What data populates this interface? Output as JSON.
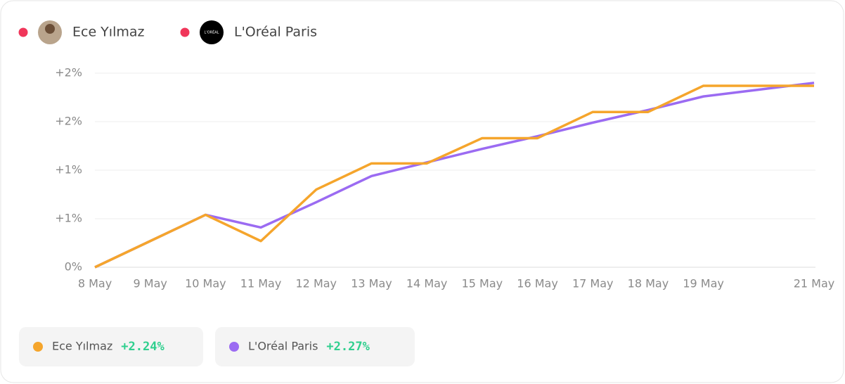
{
  "chart_data": {
    "type": "line",
    "categories": [
      "8 May",
      "9 May",
      "10 May",
      "11 May",
      "12 May",
      "13 May",
      "14 May",
      "15 May",
      "16 May",
      "17 May",
      "18 May",
      "19 May",
      null,
      "21 May"
    ],
    "series": [
      {
        "name": "Ece Yılmaz",
        "color": "#f5a52c",
        "values": [
          0,
          0.27,
          0.54,
          0.27,
          0.8,
          1.07,
          1.07,
          1.33,
          1.33,
          1.6,
          1.6,
          1.87,
          1.87,
          1.87
        ],
        "total": 2.24,
        "total_label": "+2.24%"
      },
      {
        "name": "L'Oréal Paris",
        "color": "#9b6bf2",
        "values": [
          0,
          0.27,
          0.54,
          0.41,
          0.67,
          0.94,
          1.08,
          1.22,
          1.35,
          1.49,
          1.62,
          1.76,
          1.83,
          1.9
        ],
        "total": 2.27,
        "total_label": "+2.27%"
      }
    ],
    "logo_text": "L'ORÉAL",
    "ylim": [
      0,
      2
    ],
    "yticks": [
      {
        "value": 0,
        "label": "0%"
      },
      {
        "value": 0.5,
        "label": "+1%"
      },
      {
        "value": 1,
        "label": "+1%"
      },
      {
        "value": 1.5,
        "label": "+2%"
      },
      {
        "value": 2,
        "label": "+2%"
      }
    ],
    "grid": true,
    "legend_marker_color": "#f0365a"
  }
}
